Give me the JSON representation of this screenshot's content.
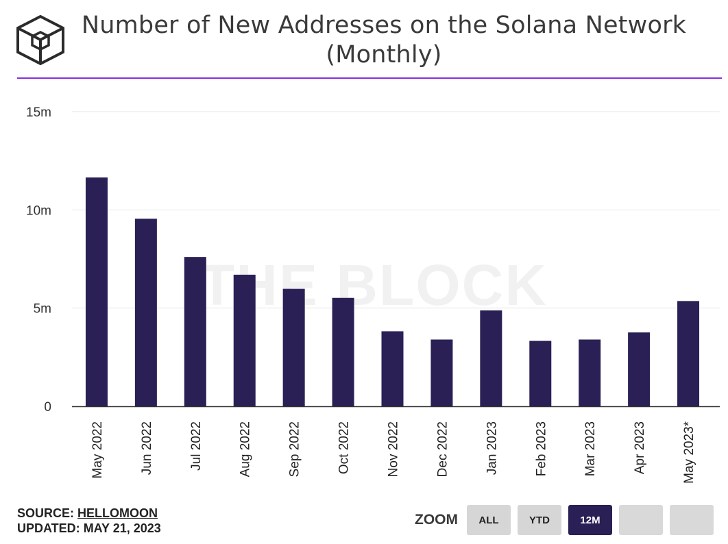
{
  "title_lines": [
    "Number of New Addresses on the Solana Network",
    "(Monthly)"
  ],
  "watermark": "THE BLOCK",
  "colors": {
    "bar": "#2a2055",
    "accent_rule": "#8a2be2",
    "active_button": "#2a2055"
  },
  "chart_data": {
    "type": "bar",
    "categories": [
      "May 2022",
      "Jun 2022",
      "Jul 2022",
      "Aug 2022",
      "Sep 2022",
      "Oct 2022",
      "Nov 2022",
      "Dec 2022",
      "Jan 2023",
      "Feb 2023",
      "Mar 2023",
      "Apr 2023",
      "May 2023*"
    ],
    "values": [
      11.65,
      9.55,
      7.6,
      6.7,
      5.98,
      5.52,
      3.82,
      3.4,
      4.88,
      3.33,
      3.4,
      3.76,
      5.36
    ],
    "value_unit": "millions",
    "ylim": [
      0,
      15
    ],
    "yticks": [
      0,
      5,
      10,
      15
    ],
    "ytick_labels": [
      "0",
      "5m",
      "10m",
      "15m"
    ],
    "grid": true,
    "title": "Number of New Addresses on the Solana Network (Monthly)",
    "xlabel": "",
    "ylabel": ""
  },
  "footer": {
    "source_label": "SOURCE:",
    "source_name": "HELLOMOON",
    "updated_label": "UPDATED:",
    "updated_value": "MAY 21, 2023"
  },
  "zoom": {
    "label": "ZOOM",
    "buttons": [
      {
        "label": "ALL",
        "active": false
      },
      {
        "label": "YTD",
        "active": false
      },
      {
        "label": "12M",
        "active": true
      },
      {
        "label": "",
        "active": false
      },
      {
        "label": "",
        "active": false
      }
    ]
  }
}
